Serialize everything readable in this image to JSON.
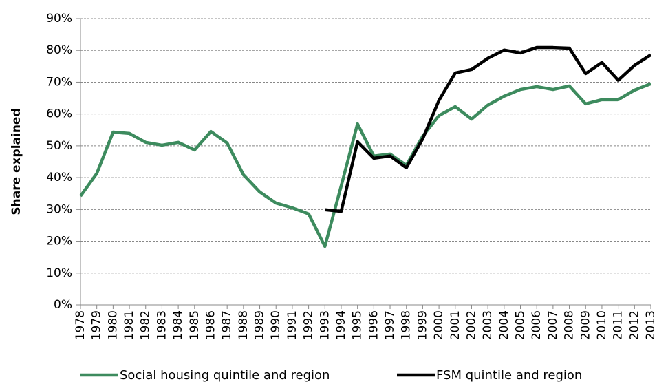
{
  "chart_data": {
    "type": "line",
    "y_label": "Share explained",
    "categories": [
      "1978",
      "1979",
      "1980",
      "1981",
      "1982",
      "1983",
      "1984",
      "1985",
      "1986",
      "1987",
      "1988",
      "1989",
      "1990",
      "1991",
      "1992",
      "1993",
      "1994",
      "1995",
      "1996",
      "1997",
      "1998",
      "1999",
      "2000",
      "2001",
      "2002",
      "2003",
      "2004",
      "2005",
      "2006",
      "2007",
      "2008",
      "2009",
      "2010",
      "2011",
      "2012",
      "2013"
    ],
    "series": [
      {
        "name": "Social housing quintile and region",
        "color": "#3d8b5e",
        "values": [
          34.2,
          41.3,
          54.3,
          53.9,
          51.1,
          50.2,
          51.1,
          48.7,
          54.5,
          50.9,
          40.9,
          35.5,
          32.0,
          30.5,
          28.6,
          18.4,
          37.4,
          56.9,
          46.8,
          47.4,
          43.9,
          53.0,
          59.5,
          62.3,
          58.4,
          62.8,
          65.6,
          67.7,
          68.6,
          67.7,
          68.8,
          63.2,
          64.5,
          64.5,
          67.5,
          69.5
        ]
      },
      {
        "name": "FSM quintile and region",
        "color": "#000000",
        "values": [
          null,
          null,
          null,
          null,
          null,
          null,
          null,
          null,
          null,
          null,
          null,
          null,
          null,
          null,
          null,
          29.9,
          29.4,
          51.3,
          46.1,
          46.8,
          43.1,
          52.2,
          64.3,
          72.9,
          74.0,
          77.5,
          80.1,
          79.2,
          80.9,
          80.9,
          80.7,
          72.7,
          76.2,
          70.6,
          75.3,
          78.6
        ]
      }
    ],
    "ylim": [
      0,
      90
    ],
    "yticks": [
      {
        "value": 0,
        "label": "0%"
      },
      {
        "value": 10,
        "label": "10%"
      },
      {
        "value": 20,
        "label": "20%"
      },
      {
        "value": 30,
        "label": "30%"
      },
      {
        "value": 40,
        "label": "40%"
      },
      {
        "value": 50,
        "label": "50%"
      },
      {
        "value": 60,
        "label": "60%"
      },
      {
        "value": 70,
        "label": "70%"
      },
      {
        "value": 80,
        "label": "80%"
      },
      {
        "value": 90,
        "label": "90%"
      }
    ],
    "grid": true,
    "legend": "bottom"
  }
}
